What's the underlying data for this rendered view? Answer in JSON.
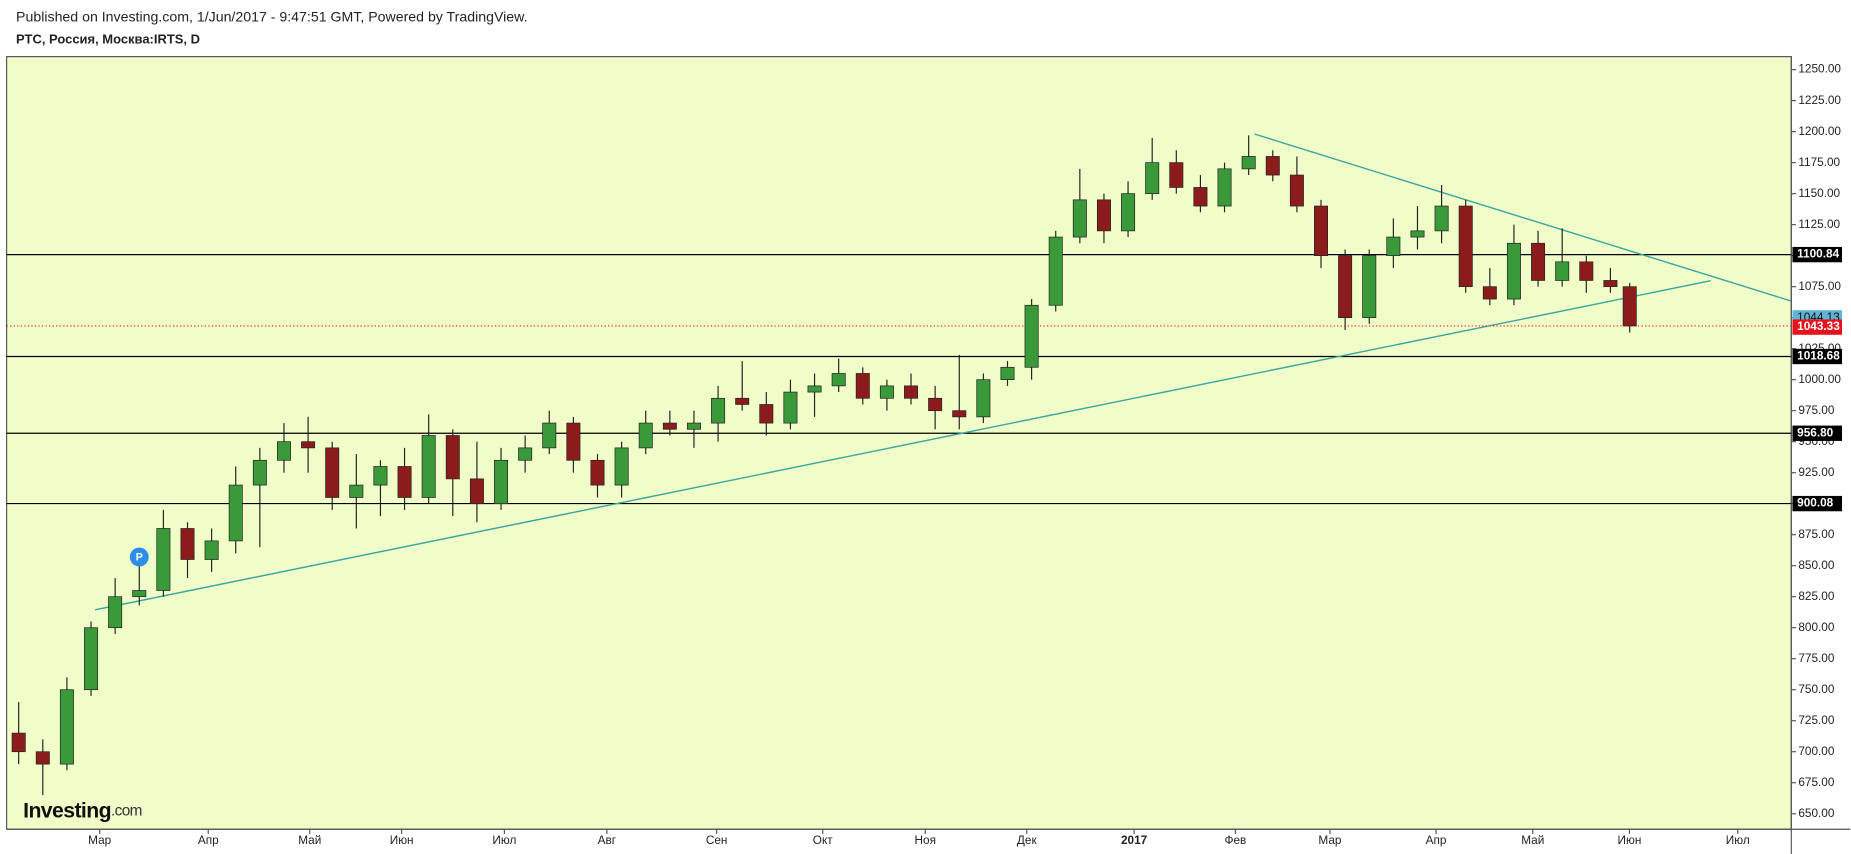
{
  "chart_data": {
    "type": "candlestick",
    "published": "Published on Investing.com, 1/Jun/2017 - 9:47:51 GMT, Powered by TradingView.",
    "title": "РТС, Россия, Москва:IRTS, D",
    "logo": "Investing",
    "logo_suffix": ".com",
    "marker_label": "P",
    "marker_x": 5.5,
    "marker_y": 857,
    "background": "#f1fdc8",
    "up_color": "#3a9a3a",
    "down_color": "#8c1c1c",
    "xlim": [
      0,
      74
    ],
    "ylim": [
      637.5,
      1260.5
    ],
    "xticks": [
      {
        "value": 3.86,
        "label": "Мар"
      },
      {
        "value": 8.36,
        "label": "Апр"
      },
      {
        "value": 12.57,
        "label": "Май"
      },
      {
        "value": 16.38,
        "label": "Июн"
      },
      {
        "value": 20.64,
        "label": "Июл"
      },
      {
        "value": 24.89,
        "label": "Авг"
      },
      {
        "value": 29.44,
        "label": "Сен"
      },
      {
        "value": 33.84,
        "label": "Окт"
      },
      {
        "value": 38.09,
        "label": "Ноя"
      },
      {
        "value": 42.3,
        "label": "Дек"
      },
      {
        "value": 46.75,
        "label": "2017"
      },
      {
        "value": 50.95,
        "label": "Фев"
      },
      {
        "value": 54.87,
        "label": "Мар"
      },
      {
        "value": 59.27,
        "label": "Апр"
      },
      {
        "value": 63.28,
        "label": "Май"
      },
      {
        "value": 67.29,
        "label": "Июн"
      },
      {
        "value": 71.78,
        "label": "Июл"
      }
    ],
    "yticks": [
      {
        "value": 650,
        "label": "650.00"
      },
      {
        "value": 675,
        "label": "675.00"
      },
      {
        "value": 700,
        "label": "700.00"
      },
      {
        "value": 725,
        "label": "725.00"
      },
      {
        "value": 750,
        "label": "750.00"
      },
      {
        "value": 775,
        "label": "775.00"
      },
      {
        "value": 800,
        "label": "800.00"
      },
      {
        "value": 825,
        "label": "825.00"
      },
      {
        "value": 850,
        "label": "850.00"
      },
      {
        "value": 875,
        "label": "875.00"
      },
      {
        "value": 900,
        "label": "900.00"
      },
      {
        "value": 925,
        "label": "925.00"
      },
      {
        "value": 950,
        "label": "950.00"
      },
      {
        "value": 975,
        "label": "975.00"
      },
      {
        "value": 1000,
        "label": "1000.00"
      },
      {
        "value": 1025,
        "label": "1025.00"
      },
      {
        "value": 1050,
        "label": "1050.00"
      },
      {
        "value": 1075,
        "label": "1075.00"
      },
      {
        "value": 1100,
        "label": "1100.00"
      },
      {
        "value": 1125,
        "label": "1125.00"
      },
      {
        "value": 1150,
        "label": "1150.00"
      },
      {
        "value": 1175,
        "label": "1175.00"
      },
      {
        "value": 1200,
        "label": "1200.00"
      },
      {
        "value": 1225,
        "label": "1225.00"
      },
      {
        "value": 1250,
        "label": "1250.00"
      }
    ],
    "x": [
      0.5,
      1.5,
      2.5,
      3.5,
      4.5,
      5.5,
      6.5,
      7.5,
      8.5,
      9.5,
      10.5,
      11.5,
      12.5,
      13.5,
      14.5,
      15.5,
      16.5,
      17.5,
      18.5,
      19.5,
      20.5,
      21.5,
      22.5,
      23.5,
      24.5,
      25.5,
      26.5,
      27.5,
      28.5,
      29.5,
      30.5,
      31.5,
      32.5,
      33.5,
      34.5,
      35.5,
      36.5,
      37.5,
      38.5,
      39.5,
      40.5,
      41.5,
      42.5,
      43.5,
      44.5,
      45.5,
      46.5,
      47.5,
      48.5,
      49.5,
      50.5,
      51.5,
      52.5,
      53.5,
      54.5,
      55.5,
      56.5,
      57.5,
      58.5,
      59.5,
      60.5,
      61.5,
      62.5,
      63.5,
      64.5,
      65.5,
      66.5,
      67.3
    ],
    "open": [
      715,
      700,
      690,
      750,
      800,
      825,
      830,
      880,
      855,
      870,
      915,
      935,
      950,
      945,
      905,
      915,
      930,
      905,
      955,
      920,
      900,
      935,
      945,
      965,
      935,
      915,
      945,
      965,
      960,
      965,
      985,
      980,
      965,
      990,
      995,
      1005,
      985,
      995,
      985,
      975,
      970,
      1000,
      1010,
      1060,
      1115,
      1145,
      1120,
      1150,
      1175,
      1155,
      1140,
      1170,
      1180,
      1165,
      1140,
      1100,
      1050,
      1100,
      1115,
      1120,
      1140,
      1075,
      1065,
      1110,
      1080,
      1095,
      1080,
      1075
    ],
    "high": [
      740,
      710,
      760,
      805,
      840,
      855,
      895,
      885,
      880,
      930,
      945,
      965,
      970,
      950,
      940,
      935,
      945,
      972,
      960,
      950,
      945,
      955,
      975,
      970,
      940,
      950,
      975,
      975,
      975,
      995,
      1015,
      990,
      1000,
      1005,
      1017,
      1010,
      1000,
      1005,
      995,
      1020,
      1005,
      1015,
      1065,
      1120,
      1170,
      1150,
      1160,
      1195,
      1185,
      1165,
      1175,
      1197,
      1185,
      1180,
      1145,
      1105,
      1105,
      1130,
      1140,
      1157,
      1145,
      1090,
      1125,
      1120,
      1122,
      1100,
      1090,
      1078
    ],
    "low": [
      690,
      665,
      685,
      745,
      795,
      818,
      825,
      840,
      845,
      860,
      865,
      925,
      925,
      895,
      880,
      890,
      895,
      900,
      890,
      885,
      895,
      925,
      940,
      925,
      905,
      905,
      940,
      955,
      945,
      950,
      975,
      955,
      960,
      970,
      990,
      980,
      975,
      980,
      960,
      960,
      965,
      995,
      1000,
      1055,
      1110,
      1110,
      1115,
      1145,
      1150,
      1135,
      1135,
      1165,
      1160,
      1135,
      1090,
      1040,
      1045,
      1090,
      1105,
      1110,
      1070,
      1060,
      1060,
      1075,
      1075,
      1070,
      1070,
      1038
    ],
    "close": [
      700,
      690,
      750,
      800,
      825,
      830,
      880,
      855,
      870,
      915,
      935,
      950,
      945,
      905,
      915,
      930,
      905,
      955,
      920,
      900,
      935,
      945,
      965,
      935,
      915,
      945,
      965,
      960,
      965,
      985,
      980,
      965,
      990,
      995,
      1005,
      985,
      995,
      985,
      975,
      970,
      1000,
      1010,
      1060,
      1115,
      1145,
      1120,
      1150,
      1175,
      1155,
      1140,
      1170,
      1180,
      1165,
      1140,
      1100,
      1050,
      1100,
      1115,
      1120,
      1140,
      1075,
      1065,
      1110,
      1080,
      1095,
      1080,
      1075,
      1043.33
    ],
    "levels": [
      {
        "value": 1100.84,
        "label": "1100.84"
      },
      {
        "value": 1018.68,
        "label": "1018.68"
      },
      {
        "value": 956.8,
        "label": "956.80"
      },
      {
        "value": 900.08,
        "label": "900.08"
      }
    ],
    "level_color": "#000000",
    "last_price": 1043.33,
    "last_price_color": "#e8121b",
    "quote_price": 1044.13,
    "quote_color": "#5fb4d6",
    "trend_color": "#3aa6a0",
    "trend_lines": [
      {
        "x": [
          3.67,
          70.66
        ],
        "y": [
          814.4,
          1079.8
        ]
      },
      {
        "x": [
          51.74,
          73.98
        ],
        "y": [
          1198.1,
          1063.5
        ]
      }
    ]
  }
}
